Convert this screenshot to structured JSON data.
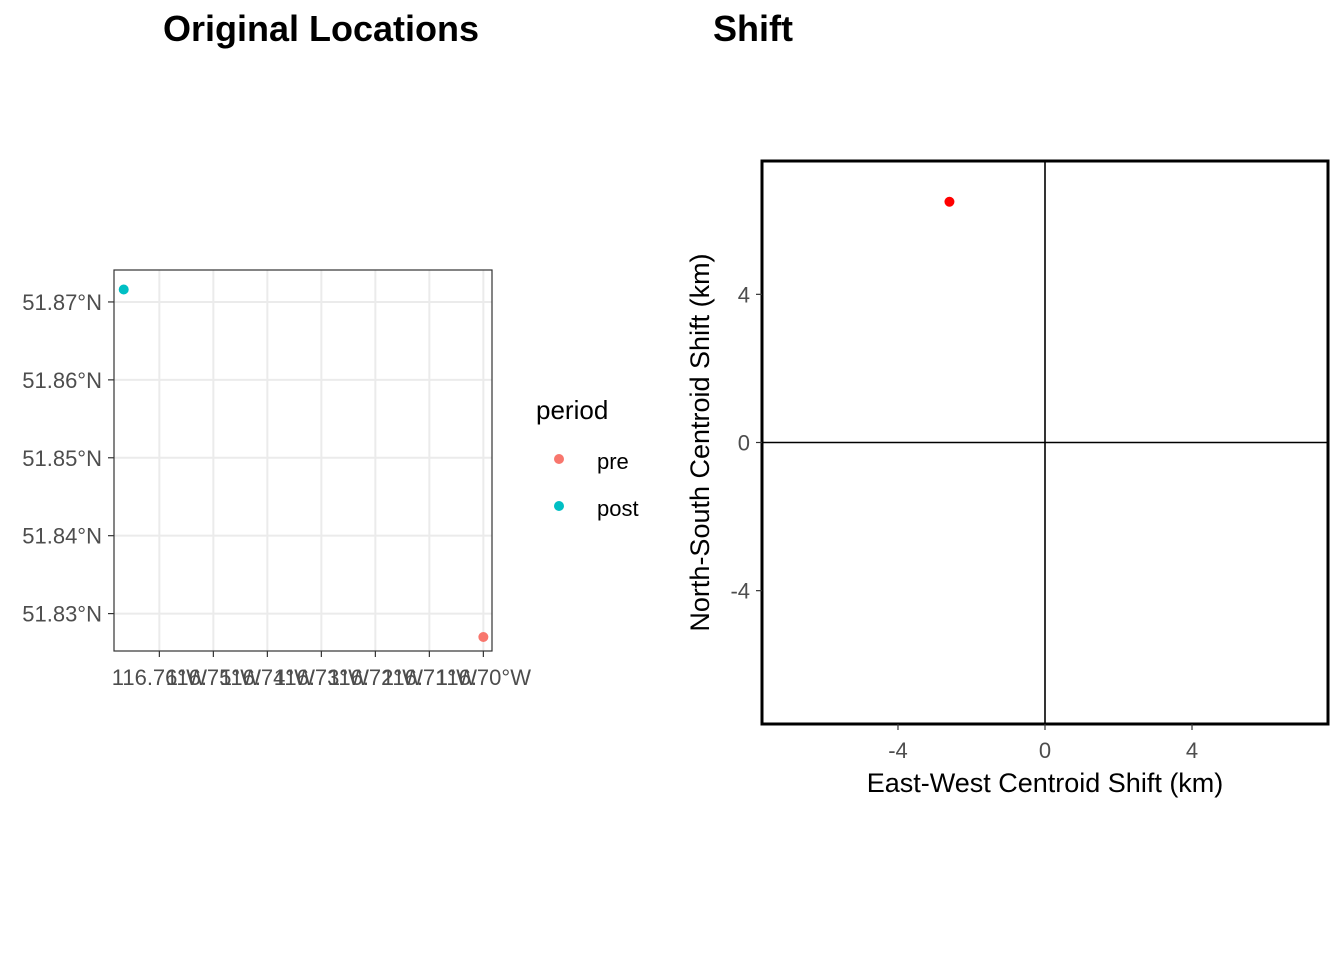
{
  "chart_data": [
    {
      "type": "scatter",
      "title": "Original Locations",
      "xlabel": "",
      "ylabel": "",
      "xlim": [
        -116.7684,
        -116.6984
      ],
      "ylim": [
        51.8252,
        51.8741
      ],
      "x_ticks": [
        -116.76,
        -116.75,
        -116.74,
        -116.73,
        -116.72,
        -116.71,
        -116.7
      ],
      "x_tick_labels": [
        "116.76°W",
        "116.75°W",
        "116.74°W",
        "116.73°W",
        "116.72°W",
        "116.71°W",
        "116.70°W"
      ],
      "y_ticks": [
        51.87,
        51.86,
        51.85,
        51.84,
        51.83
      ],
      "y_tick_labels": [
        "51.87°N",
        "51.86°N",
        "51.85°N",
        "51.84°N",
        "51.83°N"
      ],
      "grid": true,
      "legend": {
        "title": "period",
        "position": "right",
        "entries": [
          {
            "label": "pre",
            "color": "#F8766D"
          },
          {
            "label": "post",
            "color": "#00BFC4"
          }
        ]
      },
      "series": [
        {
          "name": "pre",
          "color": "#F8766D",
          "points": [
            {
              "x": -116.7,
              "y": 51.827
            }
          ]
        },
        {
          "name": "post",
          "color": "#00BFC4",
          "points": [
            {
              "x": -116.7666,
              "y": 51.8716
            }
          ]
        }
      ]
    },
    {
      "type": "scatter",
      "title": "Shift",
      "xlabel": "East-West Centroid Shift (km)",
      "ylabel": "North-South Centroid Shift (km)",
      "xlim": [
        -7.7,
        7.7
      ],
      "ylim": [
        -7.6,
        7.6
      ],
      "x_ticks": [
        -4,
        0,
        4
      ],
      "x_tick_labels": [
        "-4",
        "0",
        "4"
      ],
      "y_ticks": [
        -4,
        0,
        4
      ],
      "y_tick_labels": [
        "-4",
        "0",
        "4"
      ],
      "grid": false,
      "reference_lines": {
        "x": 0,
        "y": 0
      },
      "series": [
        {
          "color": "#FF0000",
          "points": [
            {
              "x": -2.6,
              "y": 6.5
            }
          ]
        }
      ]
    }
  ]
}
